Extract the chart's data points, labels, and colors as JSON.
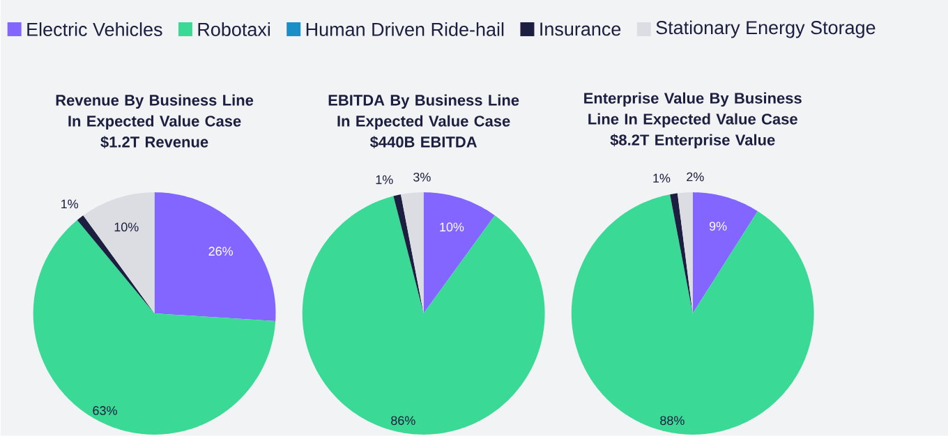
{
  "chart_data": [
    {
      "type": "pie",
      "title": "Revenue By Business Line In Expected Value Case",
      "subtitle": "$1.2T Revenue",
      "legend": "top",
      "categories": [
        "Electric Vehicles",
        "Robotaxi",
        "Human Driven Ride-hail",
        "Insurance",
        "Stationary Energy Storage"
      ],
      "values": [
        26,
        63,
        0,
        1,
        10
      ],
      "value_labels": [
        "26%",
        "63%",
        null,
        "1%",
        "10%"
      ],
      "colors": [
        "#8266ff",
        "#3bd996",
        "#1a8fc7",
        "#1c1f3f",
        "#dcdde3"
      ]
    },
    {
      "type": "pie",
      "title": "EBITDA By Business Line In Expected Value Case",
      "subtitle": "$440B EBITDA",
      "categories": [
        null,
        null,
        null,
        null,
        null
      ],
      "values": [
        10,
        86,
        0,
        1,
        3
      ],
      "value_labels": [
        "10%",
        "86%",
        null,
        "1%",
        "3%"
      ],
      "colors": [
        "#8266ff",
        "#3bd996",
        "#1a8fc7",
        "#1c1f3f",
        "#dcdde3"
      ]
    },
    {
      "type": "pie",
      "title": "Enterprise Value By Business Line In Expected Value Case",
      "subtitle": "$8.2T Enterprise Value",
      "categories": [
        null,
        null,
        null,
        null,
        null
      ],
      "values": [
        9,
        88,
        0,
        1,
        2
      ],
      "value_labels": [
        "9%",
        "88%",
        null,
        "1%",
        "2%"
      ],
      "colors": [
        "#8266ff",
        "#3bd996",
        "#1a8fc7",
        "#1c1f3f",
        "#dcdde3"
      ]
    }
  ]
}
